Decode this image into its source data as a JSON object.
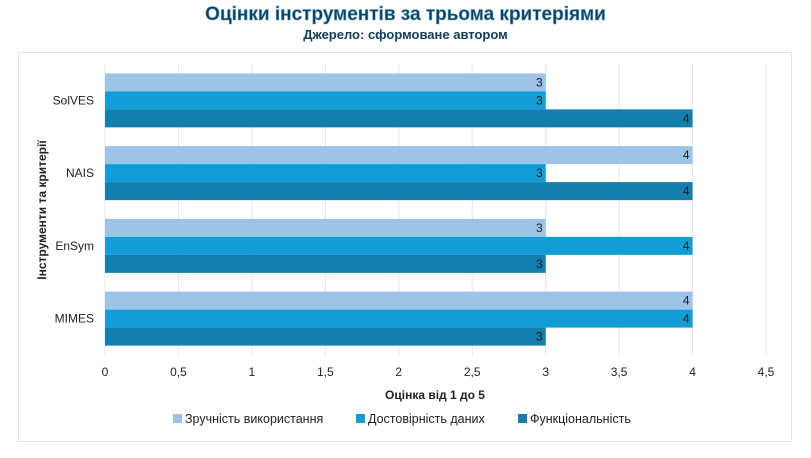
{
  "chart_data": {
    "type": "bar",
    "orientation": "horizontal",
    "title": "Оцінки інструментів за трьома критеріями",
    "subtitle": "Джерело: сформоване автором",
    "xlabel": "Оцінка від 1 до 5",
    "ylabel": "Інструменти та критерії",
    "categories": [
      "SolVES",
      "NAIS",
      "EnSym",
      "MIMES"
    ],
    "series": [
      {
        "name": "Зручність використання",
        "color": "#9dc3e6",
        "values": [
          3,
          4,
          3,
          4
        ]
      },
      {
        "name": "Достовірність даних",
        "color": "#129dd6",
        "values": [
          3,
          3,
          4,
          4
        ]
      },
      {
        "name": "Функціональність",
        "color": "#127fae",
        "values": [
          4,
          4,
          3,
          3
        ]
      }
    ],
    "xlim": [
      0,
      4.5
    ],
    "xticks": [
      "0",
      "0,5",
      "1",
      "1,5",
      "2",
      "2,5",
      "3",
      "3,5",
      "4",
      "4,5"
    ],
    "grid": true,
    "legend": "bottom"
  }
}
